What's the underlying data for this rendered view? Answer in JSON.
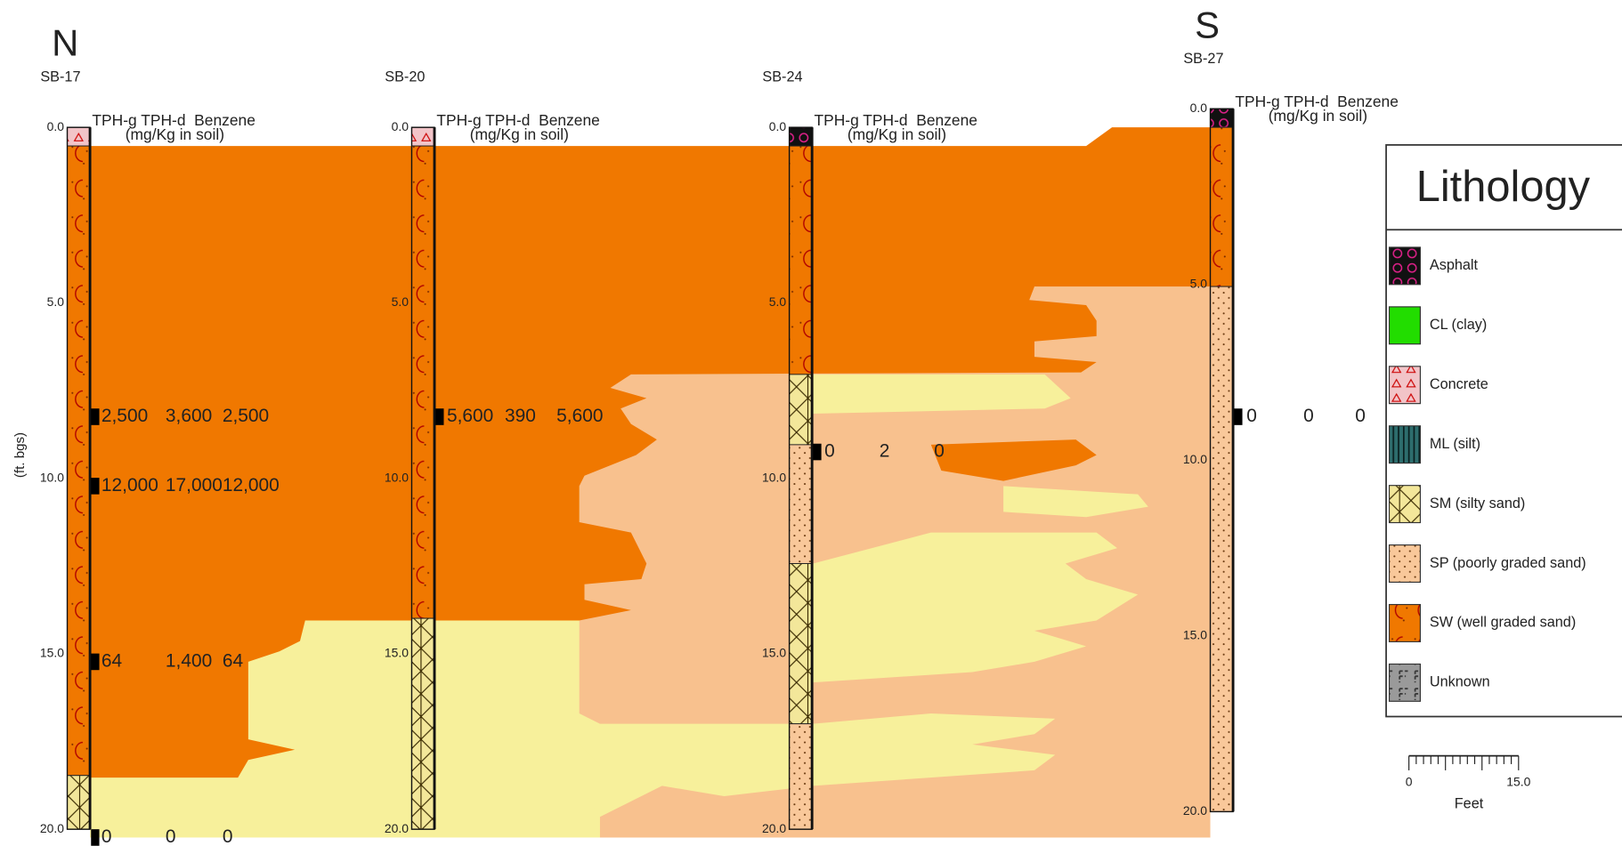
{
  "directions": {
    "north": "N",
    "south": "S"
  },
  "depth_axis_label": "(ft. bgs)",
  "depth_ticks": [
    "0.0",
    "5.0",
    "10.0",
    "15.0",
    "20.0"
  ],
  "header": {
    "columns": "TPH-g TPH-d  Benzene",
    "units": "(mg/Kg in soil)"
  },
  "borings": [
    {
      "name": "SB-17",
      "samples": [
        [
          "2,500",
          "3,600",
          "2,500"
        ],
        [
          "12,000",
          "17,000",
          "12,000"
        ],
        [
          "64",
          "1,400",
          "64"
        ],
        [
          "0",
          "0",
          "0"
        ]
      ]
    },
    {
      "name": "SB-20",
      "samples": [
        [
          "5,600",
          "390",
          "5,600"
        ]
      ]
    },
    {
      "name": "SB-24",
      "samples": [
        [
          "0",
          "2",
          "0"
        ]
      ]
    },
    {
      "name": "SB-27",
      "samples": [
        [
          "0",
          "0",
          "0"
        ]
      ]
    }
  ],
  "legend": {
    "title": "Lithology",
    "items": [
      "Asphalt",
      "CL (clay)",
      "Concrete",
      "ML (silt)",
      "SM (silty sand)",
      "SP (poorly graded sand)",
      "SW (well graded sand)",
      "Unknown"
    ]
  },
  "scale_bar": {
    "labels": [
      "0",
      "15.0"
    ],
    "unit": "Feet"
  }
}
